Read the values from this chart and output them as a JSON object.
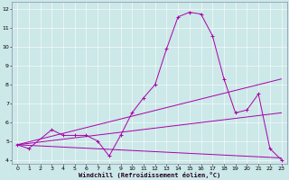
{
  "xlabel": "Windchill (Refroidissement éolien,°C)",
  "bg_color": "#cce8e8",
  "grid_color": "#aacccc",
  "line_color": "#aa00aa",
  "xlim": [
    -0.5,
    23.5
  ],
  "ylim": [
    3.8,
    12.4
  ],
  "xticks": [
    0,
    1,
    2,
    3,
    4,
    5,
    6,
    7,
    8,
    9,
    10,
    11,
    12,
    13,
    14,
    15,
    16,
    17,
    18,
    19,
    20,
    21,
    22,
    23
  ],
  "yticks": [
    4,
    5,
    6,
    7,
    8,
    9,
    10,
    11,
    12
  ],
  "main_line": {
    "x": [
      0,
      1,
      3,
      4,
      5,
      6,
      7,
      8,
      9,
      10,
      11,
      12,
      13,
      14,
      15,
      16,
      17,
      18,
      19,
      20,
      21,
      22,
      23
    ],
    "y": [
      4.8,
      4.6,
      5.6,
      5.3,
      5.3,
      5.3,
      5.0,
      4.2,
      5.3,
      6.5,
      7.3,
      8.0,
      9.9,
      11.6,
      11.85,
      11.75,
      10.6,
      8.3,
      6.5,
      6.65,
      7.5,
      4.6,
      4.0
    ]
  },
  "straight_lines": [
    {
      "x": [
        0,
        23
      ],
      "y": [
        4.8,
        8.3
      ]
    },
    {
      "x": [
        0,
        23
      ],
      "y": [
        4.8,
        6.5
      ]
    },
    {
      "x": [
        0,
        23
      ],
      "y": [
        4.8,
        4.1
      ]
    }
  ]
}
